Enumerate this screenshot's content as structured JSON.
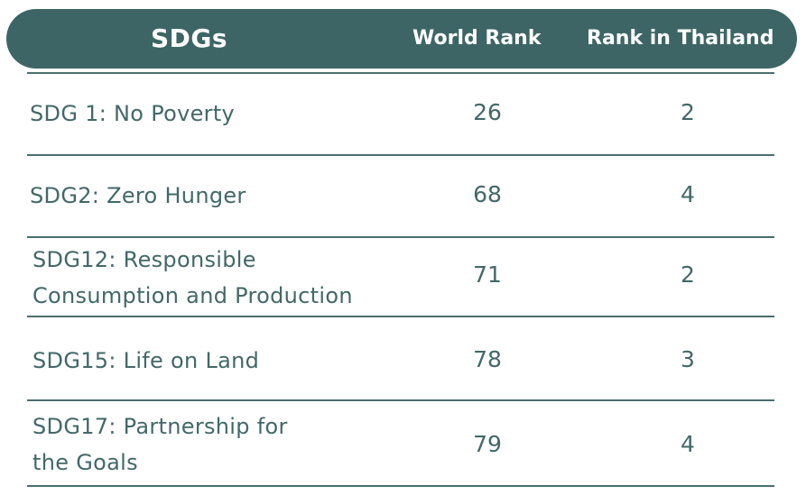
{
  "header": {
    "sdg": "SDGs",
    "world_rank": "World Rank",
    "rank_thailand": "Rank in Thailand"
  },
  "rows": [
    {
      "sdg_line1": "SDG 1: No Poverty",
      "sdg_line2": "",
      "world_rank": "26",
      "rank_thailand": "2"
    },
    {
      "sdg_line1": "SDG2: Zero Hunger",
      "sdg_line2": "",
      "world_rank": "68",
      "rank_thailand": "4"
    },
    {
      "sdg_line1": "SDG12: Responsible",
      "sdg_line2": "Consumption and Production",
      "world_rank": "71",
      "rank_thailand": "2"
    },
    {
      "sdg_line1": "SDG15: Life on Land",
      "sdg_line2": "",
      "world_rank": "78",
      "rank_thailand": "3"
    },
    {
      "sdg_line1": "SDG17: Partnership for",
      "sdg_line2": "the Goals",
      "world_rank": "79",
      "rank_thailand": "4"
    }
  ],
  "colors": {
    "header_bg": "#3d6565",
    "text": "#436868",
    "rule": "#4a6e6e"
  }
}
